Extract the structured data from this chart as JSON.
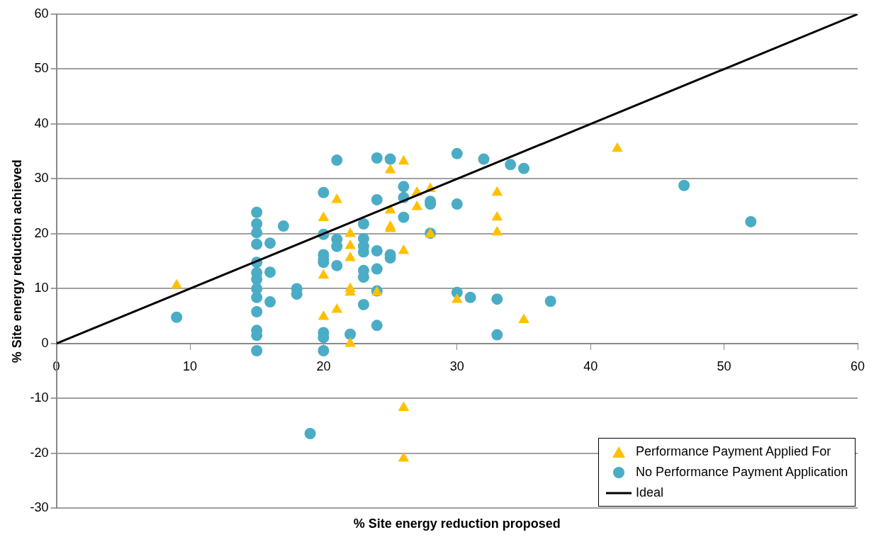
{
  "chart_data": {
    "type": "scatter",
    "xlabel": "% Site energy reduction proposed",
    "ylabel": "% Site energy reduction achieved",
    "xlim": [
      0,
      60
    ],
    "xticks": [
      0,
      10,
      20,
      30,
      40,
      50,
      60
    ],
    "ylim": [
      -30,
      60
    ],
    "yticks": [
      -30,
      -20,
      -10,
      0,
      10,
      20,
      30,
      40,
      50,
      60
    ],
    "grid": "y",
    "legend": "bottom right",
    "series": [
      {
        "name": "Performance Payment Applied For",
        "color": "#ffc000",
        "marker": "triangle",
        "x": [
          9,
          20,
          20,
          20,
          21,
          21,
          22,
          22,
          22,
          22,
          22,
          22,
          24,
          25,
          26,
          25,
          25,
          25,
          27,
          27,
          28,
          26,
          28,
          30,
          33,
          33,
          33,
          42,
          35,
          26,
          26
        ],
        "values": [
          10.6,
          22.9,
          12.4,
          4.9,
          26.2,
          6.2,
          20,
          17.8,
          15.6,
          10,
          9.3,
          0,
          9.3,
          31.6,
          33.2,
          24.3,
          21.3,
          20.9,
          27.5,
          24.9,
          28.2,
          16.9,
          19.9,
          8,
          27.5,
          23,
          20.3,
          35.5,
          4.3,
          -11.7,
          -20.9
        ]
      },
      {
        "name": "No Performance Payment Application",
        "color": "#4bacc6",
        "marker": "circle",
        "x": [
          9,
          15,
          15,
          15,
          15,
          15,
          15,
          15,
          15,
          15,
          15,
          15,
          15,
          15,
          16,
          16,
          16,
          17,
          18,
          18,
          19,
          20,
          20,
          20,
          20,
          20,
          20,
          20,
          20,
          21,
          21,
          21,
          21,
          22,
          23,
          23,
          23,
          23,
          23,
          23,
          23,
          24,
          24,
          24,
          24,
          24,
          24,
          25,
          25,
          25,
          26,
          26,
          26,
          28,
          28,
          28,
          30,
          30,
          30,
          31,
          32,
          33,
          33,
          34,
          35,
          37,
          47,
          52
        ],
        "values": [
          4.8,
          23.9,
          21.8,
          20.2,
          18.1,
          14.8,
          12.9,
          11.7,
          10,
          8.4,
          5.8,
          2.4,
          1.5,
          -1.3,
          18.3,
          13,
          7.6,
          21.4,
          10,
          9,
          -16.4,
          27.5,
          19.9,
          16.2,
          15.3,
          14.8,
          2,
          1.1,
          -1.3,
          33.4,
          19,
          17.7,
          14.2,
          1.7,
          21.8,
          19.1,
          17.7,
          16.7,
          13.3,
          12.1,
          7.1,
          33.8,
          26.2,
          16.9,
          13.6,
          9.6,
          3.3,
          33.6,
          16.2,
          15.6,
          28.6,
          26.6,
          23,
          25.9,
          25.4,
          20.1,
          34.6,
          25.4,
          9.3,
          8.4,
          33.6,
          8.1,
          1.6,
          32.6,
          31.9,
          7.7,
          28.8,
          22.2
        ]
      },
      {
        "name": "Ideal",
        "type": "line",
        "color": "#000000",
        "marker": "none",
        "line_style": "solid",
        "x": [
          0,
          60
        ],
        "values": [
          0,
          60
        ]
      }
    ]
  }
}
